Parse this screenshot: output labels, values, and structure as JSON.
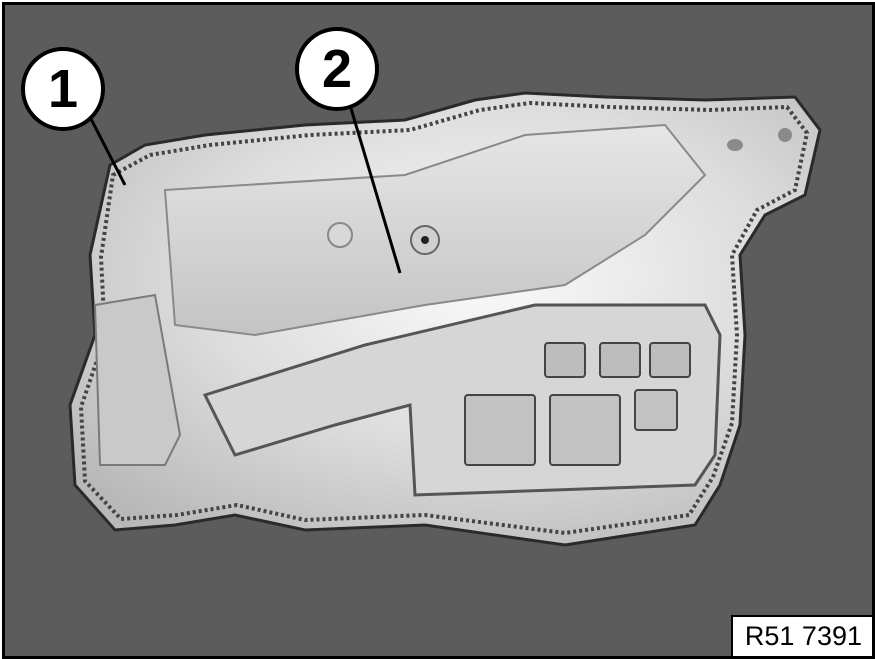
{
  "callouts": [
    {
      "label": "1"
    },
    {
      "label": "2"
    }
  ],
  "reference_code": "R51 7391"
}
